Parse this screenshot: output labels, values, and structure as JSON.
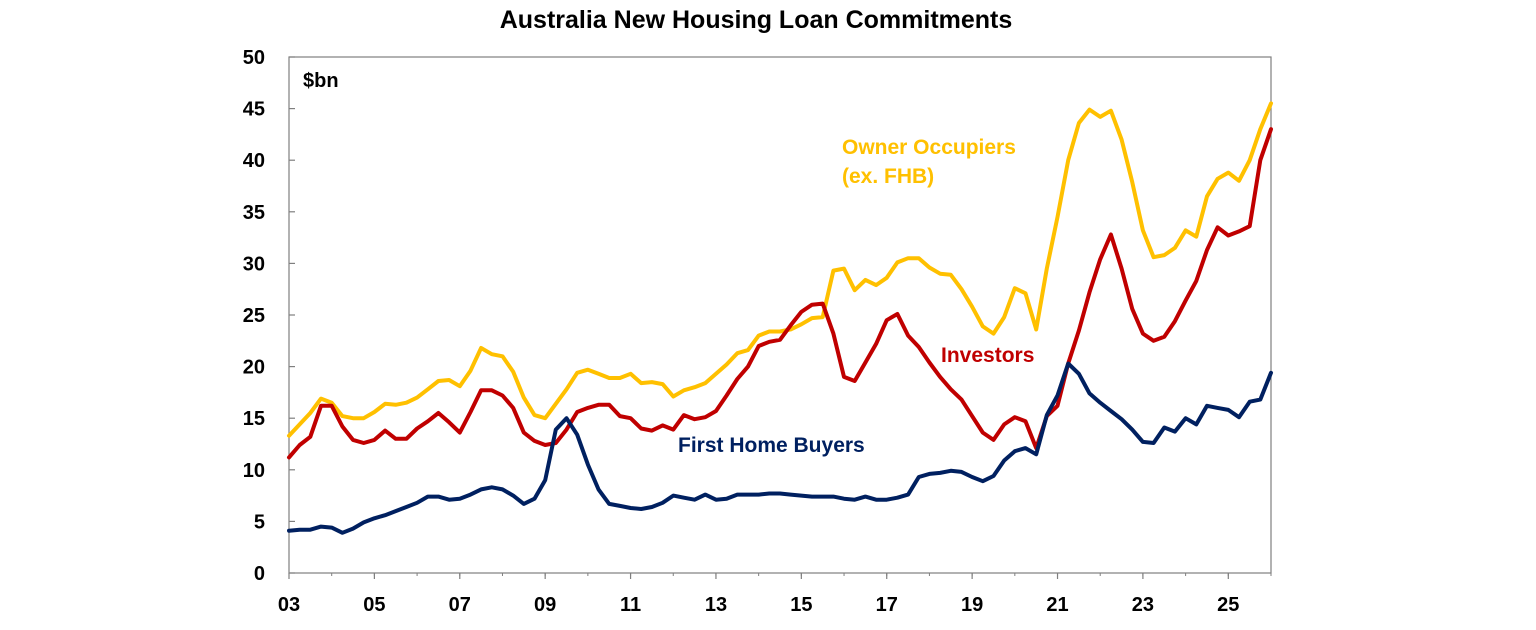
{
  "chart_data": {
    "type": "line",
    "title": "Australia New Housing Loan Commitments",
    "ylabel": "$bn",
    "xlabel": "",
    "ylim": [
      0,
      50
    ],
    "xlim": [
      2003,
      2026
    ],
    "yticks": [
      "0",
      "5",
      "10",
      "15",
      "20",
      "25",
      "30",
      "35",
      "40",
      "45",
      "50"
    ],
    "xticks": [
      {
        "label": "03",
        "value": 2003
      },
      {
        "label": "05",
        "value": 2005
      },
      {
        "label": "07",
        "value": 2007
      },
      {
        "label": "09",
        "value": 2009
      },
      {
        "label": "11",
        "value": 2011
      },
      {
        "label": "13",
        "value": 2013
      },
      {
        "label": "15",
        "value": 2015
      },
      {
        "label": "17",
        "value": 2017
      },
      {
        "label": "19",
        "value": 2019
      },
      {
        "label": "21",
        "value": 2021
      },
      {
        "label": "23",
        "value": 2023
      },
      {
        "label": "25",
        "value": 2025
      }
    ],
    "grid": false,
    "legend": "inline labels",
    "series": [
      {
        "name": "Owner Occupiers (ex. FHB)",
        "label_lines": [
          "Owner Occupiers",
          "(ex. FHB)"
        ],
        "color": "#FFC000",
        "points": [
          [
            2003.0,
            13.3
          ],
          [
            2003.5,
            15.5
          ],
          [
            2003.75,
            16.9
          ],
          [
            2004.0,
            16.5
          ],
          [
            2004.25,
            15.2
          ],
          [
            2004.5,
            15.0
          ],
          [
            2004.75,
            15.0
          ],
          [
            2005.0,
            15.6
          ],
          [
            2005.25,
            16.4
          ],
          [
            2005.5,
            16.3
          ],
          [
            2005.75,
            16.5
          ],
          [
            2006.0,
            17.0
          ],
          [
            2006.25,
            17.8
          ],
          [
            2006.5,
            18.6
          ],
          [
            2006.75,
            18.7
          ],
          [
            2007.0,
            18.1
          ],
          [
            2007.25,
            19.6
          ],
          [
            2007.5,
            21.8
          ],
          [
            2007.75,
            21.2
          ],
          [
            2008.0,
            21.0
          ],
          [
            2008.25,
            19.5
          ],
          [
            2008.5,
            17.0
          ],
          [
            2008.75,
            15.3
          ],
          [
            2009.0,
            15.0
          ],
          [
            2009.25,
            16.4
          ],
          [
            2009.5,
            17.8
          ],
          [
            2009.75,
            19.4
          ],
          [
            2010.0,
            19.7
          ],
          [
            2010.25,
            19.3
          ],
          [
            2010.5,
            18.9
          ],
          [
            2010.75,
            18.9
          ],
          [
            2011.0,
            19.3
          ],
          [
            2011.25,
            18.4
          ],
          [
            2011.5,
            18.5
          ],
          [
            2011.75,
            18.3
          ],
          [
            2012.0,
            17.1
          ],
          [
            2012.25,
            17.7
          ],
          [
            2012.5,
            18.0
          ],
          [
            2012.75,
            18.4
          ],
          [
            2013.0,
            19.3
          ],
          [
            2013.25,
            20.2
          ],
          [
            2013.5,
            21.3
          ],
          [
            2013.75,
            21.6
          ],
          [
            2014.0,
            23.0
          ],
          [
            2014.25,
            23.4
          ],
          [
            2014.5,
            23.4
          ],
          [
            2014.75,
            23.6
          ],
          [
            2015.0,
            24.1
          ],
          [
            2015.25,
            24.7
          ],
          [
            2015.5,
            24.8
          ],
          [
            2015.75,
            29.3
          ],
          [
            2016.0,
            29.5
          ],
          [
            2016.25,
            27.4
          ],
          [
            2016.5,
            28.4
          ],
          [
            2016.75,
            27.9
          ],
          [
            2017.0,
            28.6
          ],
          [
            2017.25,
            30.1
          ],
          [
            2017.5,
            30.5
          ],
          [
            2017.75,
            30.5
          ],
          [
            2018.0,
            29.6
          ],
          [
            2018.25,
            29.0
          ],
          [
            2018.5,
            28.9
          ],
          [
            2018.75,
            27.5
          ],
          [
            2019.0,
            25.8
          ],
          [
            2019.25,
            23.9
          ],
          [
            2019.5,
            23.2
          ],
          [
            2019.75,
            24.8
          ],
          [
            2020.0,
            27.6
          ],
          [
            2020.25,
            27.1
          ],
          [
            2020.5,
            23.6
          ],
          [
            2020.75,
            29.5
          ],
          [
            2021.0,
            34.5
          ],
          [
            2021.25,
            40.0
          ],
          [
            2021.5,
            43.6
          ],
          [
            2021.75,
            44.9
          ],
          [
            2022.0,
            44.2
          ],
          [
            2022.25,
            44.8
          ],
          [
            2022.5,
            42.0
          ],
          [
            2022.75,
            37.9
          ],
          [
            2023.0,
            33.2
          ],
          [
            2023.25,
            30.6
          ],
          [
            2023.5,
            30.8
          ],
          [
            2023.75,
            31.5
          ],
          [
            2024.0,
            33.2
          ],
          [
            2024.25,
            32.6
          ],
          [
            2024.5,
            36.5
          ],
          [
            2024.75,
            38.2
          ],
          [
            2025.0,
            38.8
          ],
          [
            2025.25,
            38.0
          ],
          [
            2025.5,
            40.0
          ],
          [
            2025.75,
            43.0
          ],
          [
            2026.0,
            45.5
          ]
        ]
      },
      {
        "name": "Investors",
        "label_lines": [
          "Investors"
        ],
        "color": "#C00000",
        "points": [
          [
            2003.0,
            11.2
          ],
          [
            2003.25,
            12.4
          ],
          [
            2003.5,
            13.2
          ],
          [
            2003.75,
            16.2
          ],
          [
            2004.0,
            16.2
          ],
          [
            2004.25,
            14.2
          ],
          [
            2004.5,
            12.9
          ],
          [
            2004.75,
            12.6
          ],
          [
            2005.0,
            12.9
          ],
          [
            2005.25,
            13.8
          ],
          [
            2005.5,
            13.0
          ],
          [
            2005.75,
            13.0
          ],
          [
            2006.0,
            14.0
          ],
          [
            2006.25,
            14.7
          ],
          [
            2006.5,
            15.5
          ],
          [
            2006.75,
            14.6
          ],
          [
            2007.0,
            13.6
          ],
          [
            2007.25,
            15.6
          ],
          [
            2007.5,
            17.7
          ],
          [
            2007.75,
            17.7
          ],
          [
            2008.0,
            17.2
          ],
          [
            2008.25,
            16.0
          ],
          [
            2008.5,
            13.6
          ],
          [
            2008.75,
            12.8
          ],
          [
            2009.0,
            12.4
          ],
          [
            2009.25,
            12.6
          ],
          [
            2009.5,
            13.9
          ],
          [
            2009.75,
            15.6
          ],
          [
            2010.0,
            16.0
          ],
          [
            2010.25,
            16.3
          ],
          [
            2010.5,
            16.3
          ],
          [
            2010.75,
            15.2
          ],
          [
            2011.0,
            15.0
          ],
          [
            2011.25,
            14.0
          ],
          [
            2011.5,
            13.8
          ],
          [
            2011.75,
            14.3
          ],
          [
            2012.0,
            13.9
          ],
          [
            2012.25,
            15.3
          ],
          [
            2012.5,
            14.9
          ],
          [
            2012.75,
            15.1
          ],
          [
            2013.0,
            15.7
          ],
          [
            2013.25,
            17.2
          ],
          [
            2013.5,
            18.8
          ],
          [
            2013.75,
            20.0
          ],
          [
            2014.0,
            22.0
          ],
          [
            2014.25,
            22.4
          ],
          [
            2014.5,
            22.6
          ],
          [
            2014.75,
            24.0
          ],
          [
            2015.0,
            25.3
          ],
          [
            2015.25,
            26.0
          ],
          [
            2015.5,
            26.1
          ],
          [
            2015.75,
            23.2
          ],
          [
            2016.0,
            19.0
          ],
          [
            2016.25,
            18.6
          ],
          [
            2016.5,
            20.4
          ],
          [
            2016.75,
            22.2
          ],
          [
            2017.0,
            24.5
          ],
          [
            2017.25,
            25.1
          ],
          [
            2017.5,
            23.0
          ],
          [
            2017.75,
            21.9
          ],
          [
            2018.0,
            20.4
          ],
          [
            2018.25,
            19.0
          ],
          [
            2018.5,
            17.8
          ],
          [
            2018.75,
            16.8
          ],
          [
            2019.0,
            15.2
          ],
          [
            2019.25,
            13.6
          ],
          [
            2019.5,
            12.9
          ],
          [
            2019.75,
            14.4
          ],
          [
            2020.0,
            15.1
          ],
          [
            2020.25,
            14.7
          ],
          [
            2020.5,
            12.1
          ],
          [
            2020.75,
            15.2
          ],
          [
            2021.0,
            16.2
          ],
          [
            2021.25,
            20.3
          ],
          [
            2021.5,
            23.5
          ],
          [
            2021.75,
            27.2
          ],
          [
            2022.0,
            30.4
          ],
          [
            2022.25,
            32.8
          ],
          [
            2022.5,
            29.5
          ],
          [
            2022.75,
            25.6
          ],
          [
            2023.0,
            23.2
          ],
          [
            2023.25,
            22.5
          ],
          [
            2023.5,
            22.9
          ],
          [
            2023.75,
            24.4
          ],
          [
            2024.0,
            26.4
          ],
          [
            2024.25,
            28.3
          ],
          [
            2024.5,
            31.3
          ],
          [
            2024.75,
            33.5
          ],
          [
            2025.0,
            32.7
          ],
          [
            2025.25,
            33.1
          ],
          [
            2025.5,
            33.6
          ],
          [
            2025.75,
            40.0
          ],
          [
            2026.0,
            43.0
          ]
        ]
      },
      {
        "name": "First Home Buyers",
        "label_lines": [
          "First Home Buyers"
        ],
        "color": "#002060",
        "points": [
          [
            2003.0,
            4.1
          ],
          [
            2003.25,
            4.2
          ],
          [
            2003.5,
            4.2
          ],
          [
            2003.75,
            4.5
          ],
          [
            2004.0,
            4.4
          ],
          [
            2004.25,
            3.9
          ],
          [
            2004.5,
            4.3
          ],
          [
            2004.75,
            4.9
          ],
          [
            2005.0,
            5.3
          ],
          [
            2005.25,
            5.6
          ],
          [
            2005.5,
            6.0
          ],
          [
            2005.75,
            6.4
          ],
          [
            2006.0,
            6.8
          ],
          [
            2006.25,
            7.4
          ],
          [
            2006.5,
            7.4
          ],
          [
            2006.75,
            7.1
          ],
          [
            2007.0,
            7.2
          ],
          [
            2007.25,
            7.6
          ],
          [
            2007.5,
            8.1
          ],
          [
            2007.75,
            8.3
          ],
          [
            2008.0,
            8.1
          ],
          [
            2008.25,
            7.5
          ],
          [
            2008.5,
            6.7
          ],
          [
            2008.75,
            7.2
          ],
          [
            2009.0,
            9.0
          ],
          [
            2009.25,
            13.9
          ],
          [
            2009.5,
            15.0
          ],
          [
            2009.75,
            13.4
          ],
          [
            2010.0,
            10.5
          ],
          [
            2010.25,
            8.1
          ],
          [
            2010.5,
            6.7
          ],
          [
            2010.75,
            6.5
          ],
          [
            2011.0,
            6.3
          ],
          [
            2011.25,
            6.2
          ],
          [
            2011.5,
            6.4
          ],
          [
            2011.75,
            6.8
          ],
          [
            2012.0,
            7.5
          ],
          [
            2012.25,
            7.3
          ],
          [
            2012.5,
            7.1
          ],
          [
            2012.75,
            7.6
          ],
          [
            2013.0,
            7.1
          ],
          [
            2013.25,
            7.2
          ],
          [
            2013.5,
            7.6
          ],
          [
            2013.75,
            7.6
          ],
          [
            2014.0,
            7.6
          ],
          [
            2014.25,
            7.7
          ],
          [
            2014.5,
            7.7
          ],
          [
            2014.75,
            7.6
          ],
          [
            2015.0,
            7.5
          ],
          [
            2015.25,
            7.4
          ],
          [
            2015.5,
            7.4
          ],
          [
            2015.75,
            7.4
          ],
          [
            2016.0,
            7.2
          ],
          [
            2016.25,
            7.1
          ],
          [
            2016.5,
            7.4
          ],
          [
            2016.75,
            7.1
          ],
          [
            2017.0,
            7.1
          ],
          [
            2017.25,
            7.3
          ],
          [
            2017.5,
            7.6
          ],
          [
            2017.75,
            9.3
          ],
          [
            2018.0,
            9.6
          ],
          [
            2018.25,
            9.7
          ],
          [
            2018.5,
            9.9
          ],
          [
            2018.75,
            9.8
          ],
          [
            2019.0,
            9.3
          ],
          [
            2019.25,
            8.9
          ],
          [
            2019.5,
            9.4
          ],
          [
            2019.75,
            10.9
          ],
          [
            2020.0,
            11.8
          ],
          [
            2020.25,
            12.1
          ],
          [
            2020.5,
            11.5
          ],
          [
            2020.75,
            15.3
          ],
          [
            2021.0,
            17.2
          ],
          [
            2021.25,
            20.3
          ],
          [
            2021.5,
            19.3
          ],
          [
            2021.75,
            17.4
          ],
          [
            2022.0,
            16.5
          ],
          [
            2022.25,
            15.7
          ],
          [
            2022.5,
            14.9
          ],
          [
            2022.75,
            13.9
          ],
          [
            2023.0,
            12.7
          ],
          [
            2023.25,
            12.6
          ],
          [
            2023.5,
            14.1
          ],
          [
            2023.75,
            13.7
          ],
          [
            2024.0,
            15.0
          ],
          [
            2024.25,
            14.4
          ],
          [
            2024.5,
            16.2
          ],
          [
            2024.75,
            16.0
          ],
          [
            2025.0,
            15.8
          ],
          [
            2025.25,
            15.1
          ],
          [
            2025.5,
            16.6
          ],
          [
            2025.75,
            16.8
          ],
          [
            2026.0,
            19.4
          ]
        ]
      }
    ]
  }
}
